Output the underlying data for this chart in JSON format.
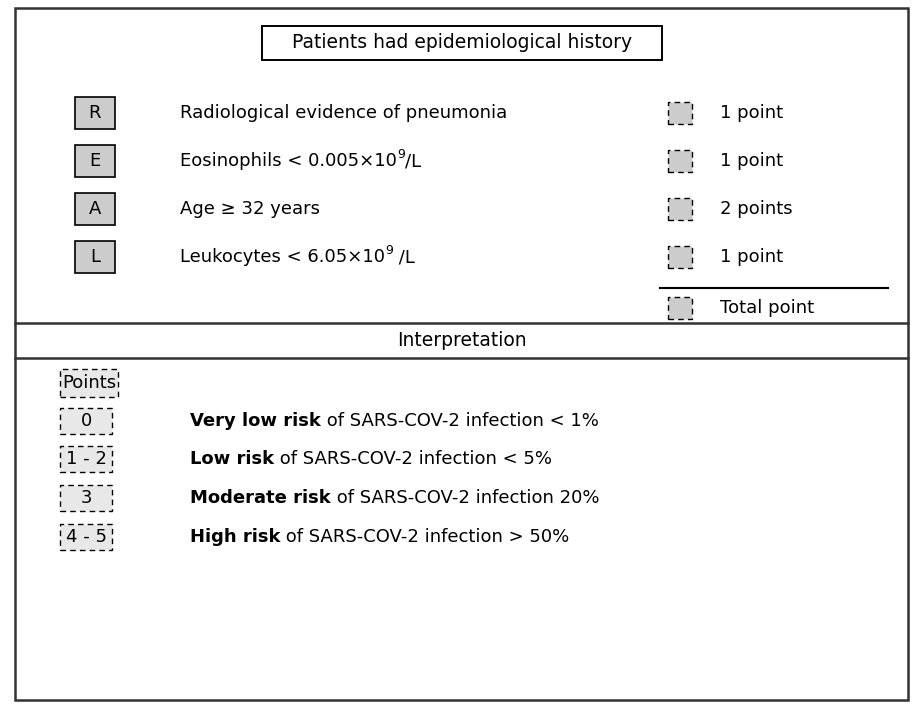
{
  "title": "Patients had epidemiological history",
  "rows": [
    {
      "letter": "R",
      "description": "Radiological evidence of pneumonia",
      "points": "1 point"
    },
    {
      "letter": "E",
      "desc_pre": "Eosinophils < 0.005×10",
      "desc_sup": "9",
      "desc_post": "/L",
      "points": "1 point"
    },
    {
      "letter": "A",
      "description": "Age ≥ 32 years",
      "points": "2 points"
    },
    {
      "letter": "L",
      "desc_pre": "Leukocytes < 6.05×10",
      "desc_sup": "9",
      "desc_post": " /L",
      "points": "1 point"
    }
  ],
  "total_label": "Total point",
  "interp_title": "Interpretation",
  "points_label": "Points",
  "risk_rows": [
    {
      "range": "0",
      "bold": "Very low risk",
      "rest": " of SARS-COV-2 infection < 1%"
    },
    {
      "range": "1 - 2",
      "bold": "Low risk",
      "rest": " of SARS-COV-2 infection < 5%"
    },
    {
      "range": "3",
      "bold": "Moderate risk",
      "rest": " of SARS-COV-2 infection 20%"
    },
    {
      "range": "4 - 5",
      "bold": "High risk",
      "rest": " of SARS-COV-2 infection > 50%"
    }
  ],
  "bg_color": "#ffffff",
  "box_edge_color": "#000000",
  "letter_box_fill": "#cccccc",
  "checkbox_fill": "#cccccc",
  "dashed_box_fill": "#e8e8e8",
  "outer_border_color": "#333333",
  "section_line_color": "#333333",
  "text_color": "#000000",
  "font_size": 13,
  "title_font_size": 13.5,
  "interp_font_size": 13.5,
  "risk_font_size": 13
}
